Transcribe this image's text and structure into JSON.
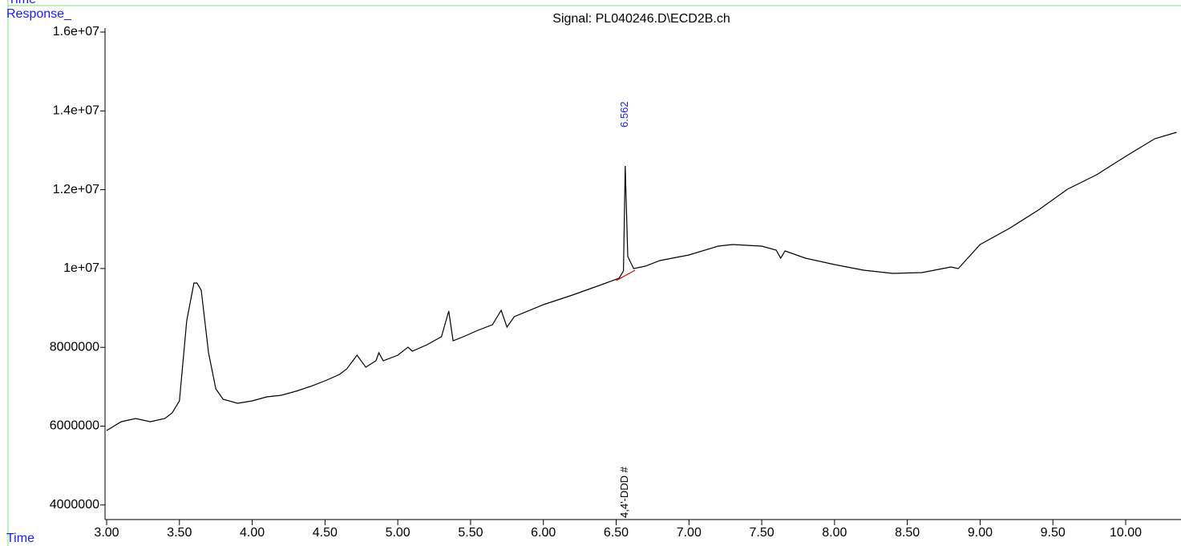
{
  "chart_data": {
    "type": "line",
    "title": "Signal: PL040246.D\\ECD2B.ch",
    "top_label": "Time",
    "y_label": "Response_",
    "x_label": "Time",
    "xlim": [
      3.0,
      10.38
    ],
    "ylim": [
      3630000,
      16000000
    ],
    "xticks": [
      {
        "value": 3,
        "label": "3.00"
      },
      {
        "value": 3.5,
        "label": "3.50"
      },
      {
        "value": 4,
        "label": "4.00"
      },
      {
        "value": 4.5,
        "label": "4.50"
      },
      {
        "value": 5,
        "label": "5.00"
      },
      {
        "value": 5.5,
        "label": "5.50"
      },
      {
        "value": 6,
        "label": "6.00"
      },
      {
        "value": 6.5,
        "label": "6.50"
      },
      {
        "value": 7,
        "label": "7.00"
      },
      {
        "value": 7.5,
        "label": "7.50"
      },
      {
        "value": 8,
        "label": "8.00"
      },
      {
        "value": 8.5,
        "label": "8.50"
      },
      {
        "value": 9,
        "label": "9.00"
      },
      {
        "value": 9.5,
        "label": "9.50"
      },
      {
        "value": 10,
        "label": "10.00"
      }
    ],
    "yticks": [
      4000000,
      6000000,
      8000000,
      {
        "value": 10000000,
        "label": "1e+07"
      },
      {
        "value": 12000000,
        "label": "1.2e+07"
      },
      {
        "value": 14000000,
        "label": "1.4e+07"
      },
      {
        "value": 16000000,
        "label": "1.6e+07"
      }
    ],
    "series": [
      {
        "name": "Signal",
        "color": "#000000",
        "x": [
          3.0,
          3.1,
          3.2,
          3.3,
          3.4,
          3.45,
          3.5,
          3.55,
          3.6,
          3.62,
          3.65,
          3.7,
          3.75,
          3.8,
          3.9,
          4.0,
          4.1,
          4.2,
          4.3,
          4.4,
          4.5,
          4.6,
          4.65,
          4.72,
          4.78,
          4.85,
          4.87,
          4.9,
          5.0,
          5.07,
          5.1,
          5.2,
          5.3,
          5.35,
          5.38,
          5.45,
          5.55,
          5.65,
          5.71,
          5.75,
          5.8,
          6.0,
          6.2,
          6.4,
          6.52,
          6.55,
          6.562,
          6.58,
          6.62,
          6.7,
          6.8,
          7.0,
          7.2,
          7.3,
          7.5,
          7.6,
          7.63,
          7.66,
          7.8,
          8.0,
          8.2,
          8.4,
          8.6,
          8.8,
          8.85,
          9.0,
          9.2,
          9.4,
          9.6,
          9.8,
          10.0,
          10.2,
          10.35
        ],
        "values": [
          5888000,
          6112000,
          6193000,
          6112000,
          6193000,
          6336000,
          6641000,
          8675000,
          9632000,
          9632000,
          9449000,
          7862000,
          6946000,
          6682000,
          6580000,
          6641000,
          6743000,
          6783000,
          6885000,
          7007000,
          7149000,
          7312000,
          7455000,
          7801000,
          7495000,
          7658000,
          7862000,
          7658000,
          7801000,
          8004000,
          7902000,
          8065000,
          8269000,
          8920000,
          8167000,
          8269000,
          8431000,
          8574000,
          8940000,
          8513000,
          8777000,
          9082000,
          9327000,
          9591000,
          9754000,
          9937000,
          12602000,
          10303000,
          9998000,
          10059000,
          10201000,
          10344000,
          10568000,
          10608000,
          10568000,
          10466000,
          10262000,
          10446000,
          10262000,
          10100000,
          9957000,
          9876000,
          9896000,
          10039000,
          9998000,
          10608000,
          11015000,
          11483000,
          12012000,
          12378000,
          12846000,
          13294000,
          13457000
        ]
      },
      {
        "name": "Baseline",
        "color": "#e00000",
        "x": [
          6.5,
          6.63
        ],
        "values": [
          9693000,
          9957000
        ]
      }
    ],
    "peak_label": {
      "x": 6.562,
      "text": "6.562"
    },
    "compound_label": {
      "x": 6.562,
      "text": "4,4'-DDD #"
    }
  }
}
